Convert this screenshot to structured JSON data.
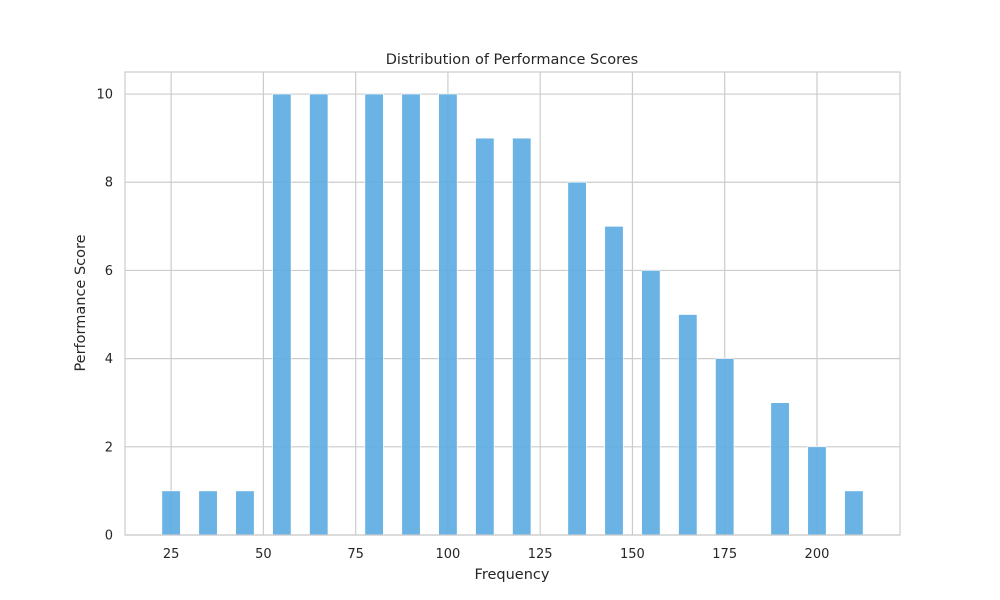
{
  "chart_data": {
    "type": "bar",
    "title": "Distribution of Performance Scores",
    "xlabel": "Frequency",
    "ylabel": "Performance Score",
    "xlim": [
      12.5,
      222.5
    ],
    "ylim": [
      0,
      10.5
    ],
    "xticks": [
      25,
      50,
      75,
      100,
      125,
      150,
      175,
      200
    ],
    "yticks": [
      0,
      2,
      4,
      6,
      8,
      10
    ],
    "bar_width": 5,
    "grid": true,
    "bar_color": "#5DADE2",
    "grid_color": "#CCCCCC",
    "x": [
      25,
      35,
      45,
      55,
      65,
      80,
      90,
      100,
      110,
      120,
      135,
      145,
      155,
      165,
      175,
      190,
      200,
      210
    ],
    "values": [
      1,
      1,
      1,
      10,
      10,
      10,
      10,
      10,
      9,
      9,
      8,
      7,
      6,
      5,
      4,
      3,
      2,
      1
    ]
  }
}
